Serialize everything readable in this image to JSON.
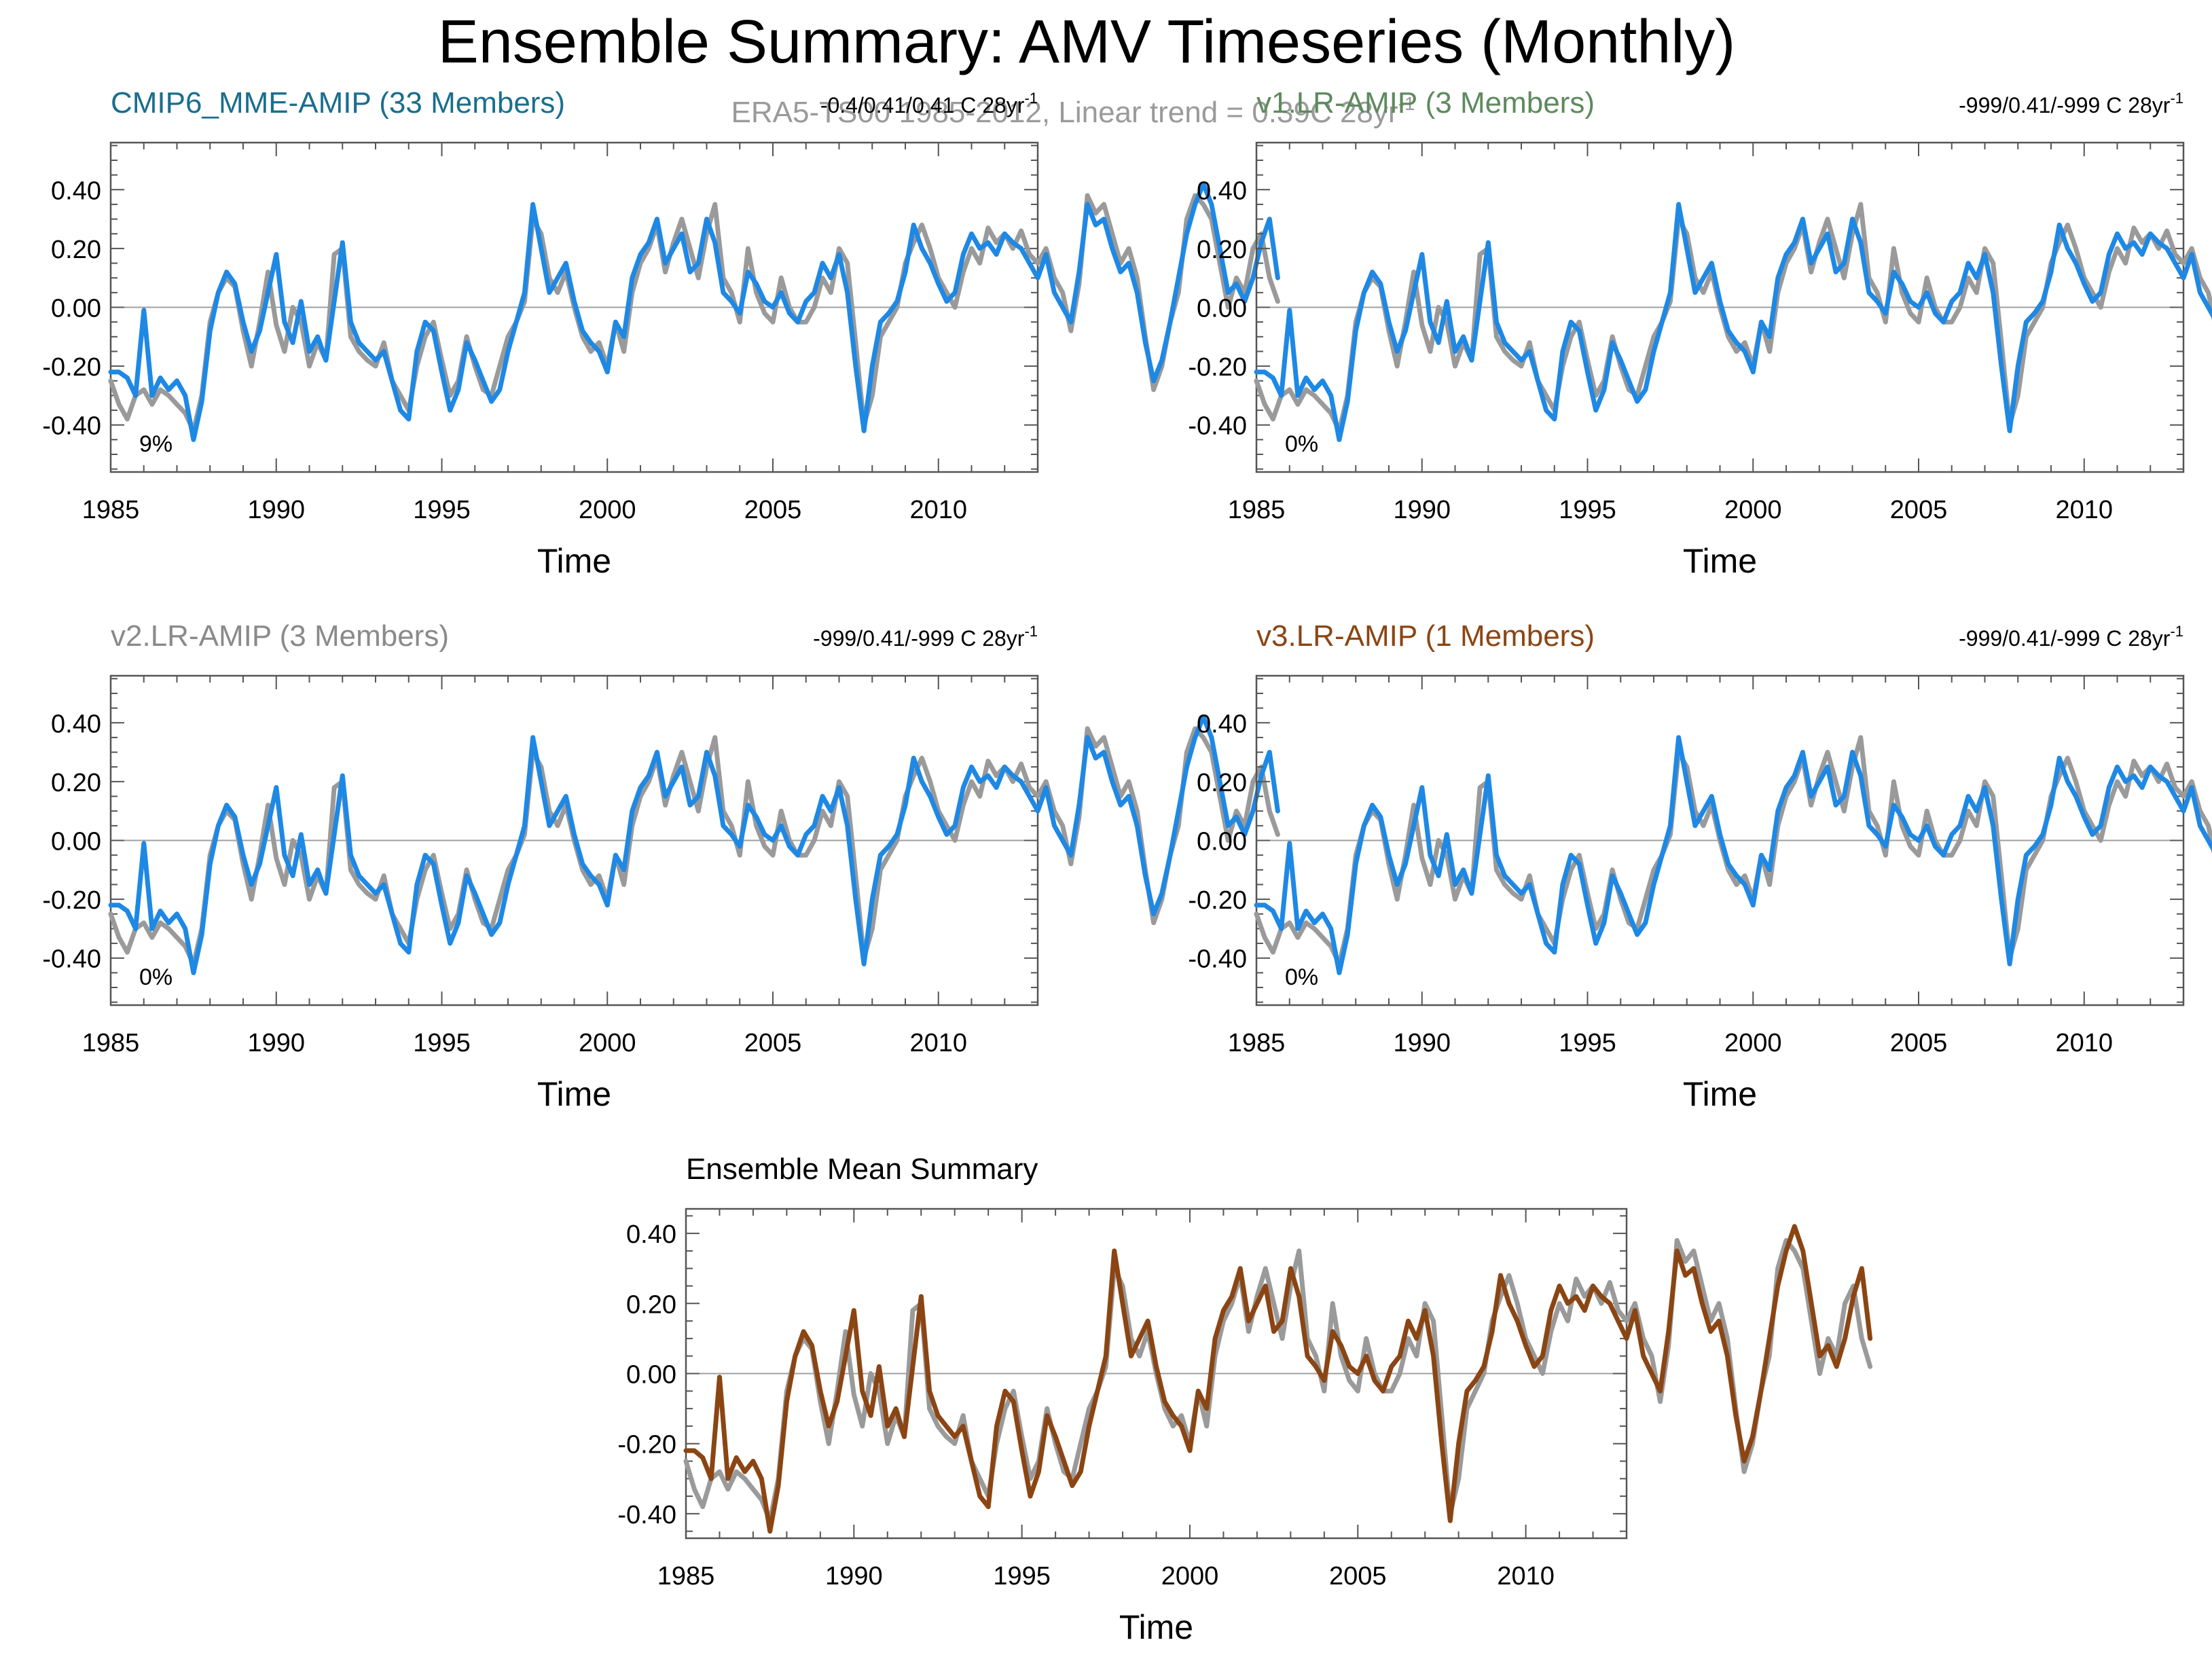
{
  "page": {
    "title": "Ensemble Summary: AMV Timeseries (Monthly)",
    "reference_label": "ERA5-TS00 1985-2012, Linear trend = 0.39C 28yr",
    "reference_label_sup": "-1"
  },
  "colors": {
    "observation": "#9a9a9a",
    "model": "#1e88e5",
    "ensemble_mean": "#8b4513",
    "zero_line": "#a0a0a0",
    "frame": "#555555"
  },
  "chart_data": [
    {
      "type": "line",
      "id": "p1",
      "title": "CMIP6_MME-AMIP (33 Members)",
      "title_color": "#1a6e8e",
      "stats": "-0.4/0.41/0.41 C 28yr",
      "stats_sup": "-1",
      "percent": "9%",
      "xlabel": "Time",
      "xlim": [
        1985,
        2013
      ],
      "ylim": [
        -0.56,
        0.56
      ],
      "xticks": [
        1985,
        1990,
        1995,
        2000,
        2005,
        2010
      ],
      "xtick_labels": [
        "1985",
        "1990",
        "1995",
        "2000",
        "2005",
        "2010"
      ],
      "yticks": [
        -0.4,
        -0.2,
        0.0,
        0.2,
        0.4
      ],
      "ytick_labels": [
        "-0.40",
        "-0.20",
        "0.00",
        "0.20",
        "0.40"
      ],
      "series": [
        {
          "name": "ERA5-TS00",
          "role": "observation"
        },
        {
          "name": "CMIP6_MME-AMIP",
          "role": "model"
        }
      ]
    },
    {
      "type": "line",
      "id": "p2",
      "title": "v1.LR-AMIP (3 Members)",
      "title_color": "#5d8a5d",
      "stats": "-999/0.41/-999 C 28yr",
      "stats_sup": "-1",
      "percent": "0%",
      "xlabel": "Time",
      "xlim": [
        1985,
        2013
      ],
      "ylim": [
        -0.56,
        0.56
      ],
      "xticks": [
        1985,
        1990,
        1995,
        2000,
        2005,
        2010
      ],
      "xtick_labels": [
        "1985",
        "1990",
        "1995",
        "2000",
        "2005",
        "2010"
      ],
      "yticks": [
        -0.4,
        -0.2,
        0.0,
        0.2,
        0.4
      ],
      "ytick_labels": [
        "-0.40",
        "-0.20",
        "0.00",
        "0.20",
        "0.40"
      ],
      "series": [
        {
          "name": "ERA5-TS00",
          "role": "observation"
        },
        {
          "name": "v1.LR-AMIP",
          "role": "model"
        }
      ]
    },
    {
      "type": "line",
      "id": "p3",
      "title": "v2.LR-AMIP (3 Members)",
      "title_color": "#8a8a8a",
      "stats": "-999/0.41/-999 C 28yr",
      "stats_sup": "-1",
      "percent": "0%",
      "xlabel": "Time",
      "xlim": [
        1985,
        2013
      ],
      "ylim": [
        -0.56,
        0.56
      ],
      "xticks": [
        1985,
        1990,
        1995,
        2000,
        2005,
        2010
      ],
      "xtick_labels": [
        "1985",
        "1990",
        "1995",
        "2000",
        "2005",
        "2010"
      ],
      "yticks": [
        -0.4,
        -0.2,
        0.0,
        0.2,
        0.4
      ],
      "ytick_labels": [
        "-0.40",
        "-0.20",
        "0.00",
        "0.20",
        "0.40"
      ],
      "series": [
        {
          "name": "ERA5-TS00",
          "role": "observation"
        },
        {
          "name": "v2.LR-AMIP",
          "role": "model"
        }
      ]
    },
    {
      "type": "line",
      "id": "p4",
      "title": "v3.LR-AMIP (1 Members)",
      "title_color": "#8b4513",
      "stats": "-999/0.41/-999 C 28yr",
      "stats_sup": "-1",
      "percent": "0%",
      "xlabel": "Time",
      "xlim": [
        1985,
        2013
      ],
      "ylim": [
        -0.56,
        0.56
      ],
      "xticks": [
        1985,
        1990,
        1995,
        2000,
        2005,
        2010
      ],
      "xtick_labels": [
        "1985",
        "1990",
        "1995",
        "2000",
        "2005",
        "2010"
      ],
      "yticks": [
        -0.4,
        -0.2,
        0.0,
        0.2,
        0.4
      ],
      "ytick_labels": [
        "-0.40",
        "-0.20",
        "0.00",
        "0.20",
        "0.40"
      ],
      "series": [
        {
          "name": "ERA5-TS00",
          "role": "observation"
        },
        {
          "name": "v3.LR-AMIP",
          "role": "model"
        }
      ]
    },
    {
      "type": "line",
      "id": "p5",
      "title": "Ensemble Mean Summary",
      "title_color": "#000000",
      "stats": "",
      "stats_sup": "",
      "percent": "",
      "xlabel": "Time",
      "xlim": [
        1985,
        2013
      ],
      "ylim": [
        -0.47,
        0.47
      ],
      "xticks": [
        1985,
        1990,
        1995,
        2000,
        2005,
        2010
      ],
      "xtick_labels": [
        "1985",
        "1990",
        "1995",
        "2000",
        "2005",
        "2010"
      ],
      "yticks": [
        -0.4,
        -0.2,
        0.0,
        0.2,
        0.4
      ],
      "ytick_labels": [
        "-0.40",
        "-0.20",
        "0.00",
        "0.20",
        "0.40"
      ],
      "series": [
        {
          "name": "ERA5-TS00",
          "role": "observation"
        },
        {
          "name": "Ensemble mean",
          "role": "ensemble_mean"
        }
      ]
    }
  ],
  "timeseries": {
    "start": 1985.0,
    "step": 0.25,
    "observation": [
      -0.25,
      -0.33,
      -0.38,
      -0.3,
      -0.28,
      -0.33,
      -0.28,
      -0.3,
      -0.33,
      -0.36,
      -0.42,
      -0.3,
      -0.05,
      0.05,
      0.1,
      0.07,
      -0.08,
      -0.2,
      -0.05,
      0.12,
      -0.06,
      -0.15,
      0.0,
      -0.05,
      -0.2,
      -0.12,
      -0.18,
      0.18,
      0.2,
      -0.1,
      -0.15,
      -0.18,
      -0.2,
      -0.12,
      -0.25,
      -0.3,
      -0.35,
      -0.2,
      -0.1,
      -0.05,
      -0.18,
      -0.3,
      -0.25,
      -0.1,
      -0.2,
      -0.28,
      -0.3,
      -0.2,
      -0.1,
      -0.05,
      0.02,
      0.3,
      0.25,
      0.1,
      0.05,
      0.12,
      0.0,
      -0.1,
      -0.15,
      -0.12,
      -0.2,
      -0.05,
      -0.15,
      0.05,
      0.15,
      0.2,
      0.28,
      0.12,
      0.22,
      0.3,
      0.2,
      0.1,
      0.25,
      0.35,
      0.1,
      0.05,
      -0.05,
      0.2,
      0.05,
      -0.02,
      -0.05,
      0.1,
      0.0,
      -0.05,
      -0.05,
      0.0,
      0.1,
      0.05,
      0.2,
      0.15,
      -0.12,
      -0.4,
      -0.3,
      -0.1,
      -0.05,
      0.0,
      0.15,
      0.22,
      0.28,
      0.2,
      0.1,
      0.05,
      0.0,
      0.12,
      0.2,
      0.15,
      0.27,
      0.22,
      0.25,
      0.2,
      0.26,
      0.18,
      0.15,
      0.2,
      0.1,
      0.05,
      -0.08,
      0.08,
      0.38,
      0.32,
      0.35,
      0.25,
      0.15,
      0.2,
      0.1,
      -0.1,
      -0.28,
      -0.2,
      -0.05,
      0.05,
      0.3,
      0.38,
      0.35,
      0.3,
      0.15,
      0.0,
      0.1,
      0.05,
      0.2,
      0.25,
      0.1,
      0.02
    ],
    "model": [
      -0.22,
      -0.22,
      -0.24,
      -0.3,
      -0.01,
      -0.3,
      -0.24,
      -0.28,
      -0.25,
      -0.3,
      -0.45,
      -0.32,
      -0.08,
      0.05,
      0.12,
      0.08,
      -0.05,
      -0.15,
      -0.08,
      0.05,
      0.18,
      -0.05,
      -0.12,
      0.02,
      -0.15,
      -0.1,
      -0.18,
      0.02,
      0.22,
      -0.05,
      -0.12,
      -0.15,
      -0.18,
      -0.15,
      -0.25,
      -0.35,
      -0.38,
      -0.15,
      -0.05,
      -0.08,
      -0.22,
      -0.35,
      -0.28,
      -0.12,
      -0.18,
      -0.25,
      -0.32,
      -0.28,
      -0.15,
      -0.05,
      0.05,
      0.35,
      0.2,
      0.05,
      0.1,
      0.15,
      0.02,
      -0.08,
      -0.12,
      -0.15,
      -0.22,
      -0.05,
      -0.1,
      0.1,
      0.18,
      0.22,
      0.3,
      0.15,
      0.2,
      0.25,
      0.12,
      0.15,
      0.3,
      0.22,
      0.05,
      0.02,
      -0.02,
      0.12,
      0.08,
      0.02,
      0.0,
      0.05,
      -0.02,
      -0.05,
      0.02,
      0.05,
      0.15,
      0.1,
      0.18,
      0.05,
      -0.2,
      -0.42,
      -0.2,
      -0.05,
      -0.02,
      0.02,
      0.12,
      0.28,
      0.2,
      0.15,
      0.08,
      0.02,
      0.05,
      0.18,
      0.25,
      0.2,
      0.22,
      0.18,
      0.25,
      0.22,
      0.2,
      0.15,
      0.1,
      0.18,
      0.05,
      0.0,
      -0.05,
      0.12,
      0.35,
      0.28,
      0.3,
      0.2,
      0.12,
      0.15,
      0.05,
      -0.12,
      -0.25,
      -0.18,
      -0.05,
      0.1,
      0.25,
      0.35,
      0.42,
      0.35,
      0.2,
      0.05,
      0.08,
      0.02,
      0.1,
      0.22,
      0.3,
      0.1
    ]
  }
}
